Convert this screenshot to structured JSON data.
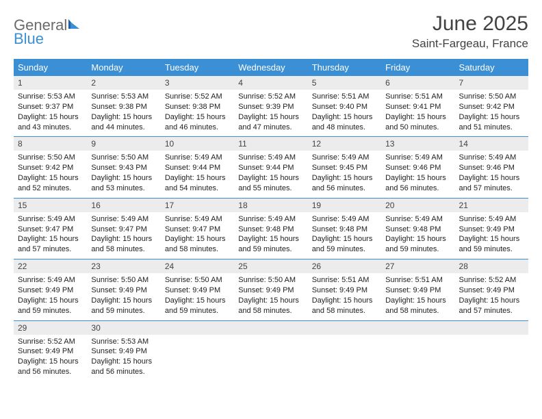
{
  "brand": {
    "part1": "General",
    "part2": "Blue"
  },
  "title": "June 2025",
  "location": "Saint-Fargeau, France",
  "colors": {
    "header_bg": "#3b8fd4",
    "header_text": "#ffffff",
    "daynum_bg": "#ececec",
    "border": "#3b8fd4",
    "text": "#212121",
    "title_text": "#424242",
    "logo_gray": "#6b6b6b",
    "logo_blue": "#3b8fd4",
    "page_bg": "#ffffff"
  },
  "fonts": {
    "title_size": 30,
    "location_size": 17,
    "th_size": 13,
    "daynum_size": 12,
    "body_size": 11
  },
  "weekdays": [
    "Sunday",
    "Monday",
    "Tuesday",
    "Wednesday",
    "Thursday",
    "Friday",
    "Saturday"
  ],
  "weeks": [
    [
      {
        "n": "1",
        "sr": "5:53 AM",
        "ss": "9:37 PM",
        "dl": "15 hours and 43 minutes."
      },
      {
        "n": "2",
        "sr": "5:53 AM",
        "ss": "9:38 PM",
        "dl": "15 hours and 44 minutes."
      },
      {
        "n": "3",
        "sr": "5:52 AM",
        "ss": "9:38 PM",
        "dl": "15 hours and 46 minutes."
      },
      {
        "n": "4",
        "sr": "5:52 AM",
        "ss": "9:39 PM",
        "dl": "15 hours and 47 minutes."
      },
      {
        "n": "5",
        "sr": "5:51 AM",
        "ss": "9:40 PM",
        "dl": "15 hours and 48 minutes."
      },
      {
        "n": "6",
        "sr": "5:51 AM",
        "ss": "9:41 PM",
        "dl": "15 hours and 50 minutes."
      },
      {
        "n": "7",
        "sr": "5:50 AM",
        "ss": "9:42 PM",
        "dl": "15 hours and 51 minutes."
      }
    ],
    [
      {
        "n": "8",
        "sr": "5:50 AM",
        "ss": "9:42 PM",
        "dl": "15 hours and 52 minutes."
      },
      {
        "n": "9",
        "sr": "5:50 AM",
        "ss": "9:43 PM",
        "dl": "15 hours and 53 minutes."
      },
      {
        "n": "10",
        "sr": "5:49 AM",
        "ss": "9:44 PM",
        "dl": "15 hours and 54 minutes."
      },
      {
        "n": "11",
        "sr": "5:49 AM",
        "ss": "9:44 PM",
        "dl": "15 hours and 55 minutes."
      },
      {
        "n": "12",
        "sr": "5:49 AM",
        "ss": "9:45 PM",
        "dl": "15 hours and 56 minutes."
      },
      {
        "n": "13",
        "sr": "5:49 AM",
        "ss": "9:46 PM",
        "dl": "15 hours and 56 minutes."
      },
      {
        "n": "14",
        "sr": "5:49 AM",
        "ss": "9:46 PM",
        "dl": "15 hours and 57 minutes."
      }
    ],
    [
      {
        "n": "15",
        "sr": "5:49 AM",
        "ss": "9:47 PM",
        "dl": "15 hours and 57 minutes."
      },
      {
        "n": "16",
        "sr": "5:49 AM",
        "ss": "9:47 PM",
        "dl": "15 hours and 58 minutes."
      },
      {
        "n": "17",
        "sr": "5:49 AM",
        "ss": "9:47 PM",
        "dl": "15 hours and 58 minutes."
      },
      {
        "n": "18",
        "sr": "5:49 AM",
        "ss": "9:48 PM",
        "dl": "15 hours and 59 minutes."
      },
      {
        "n": "19",
        "sr": "5:49 AM",
        "ss": "9:48 PM",
        "dl": "15 hours and 59 minutes."
      },
      {
        "n": "20",
        "sr": "5:49 AM",
        "ss": "9:48 PM",
        "dl": "15 hours and 59 minutes."
      },
      {
        "n": "21",
        "sr": "5:49 AM",
        "ss": "9:49 PM",
        "dl": "15 hours and 59 minutes."
      }
    ],
    [
      {
        "n": "22",
        "sr": "5:49 AM",
        "ss": "9:49 PM",
        "dl": "15 hours and 59 minutes."
      },
      {
        "n": "23",
        "sr": "5:50 AM",
        "ss": "9:49 PM",
        "dl": "15 hours and 59 minutes."
      },
      {
        "n": "24",
        "sr": "5:50 AM",
        "ss": "9:49 PM",
        "dl": "15 hours and 59 minutes."
      },
      {
        "n": "25",
        "sr": "5:50 AM",
        "ss": "9:49 PM",
        "dl": "15 hours and 58 minutes."
      },
      {
        "n": "26",
        "sr": "5:51 AM",
        "ss": "9:49 PM",
        "dl": "15 hours and 58 minutes."
      },
      {
        "n": "27",
        "sr": "5:51 AM",
        "ss": "9:49 PM",
        "dl": "15 hours and 58 minutes."
      },
      {
        "n": "28",
        "sr": "5:52 AM",
        "ss": "9:49 PM",
        "dl": "15 hours and 57 minutes."
      }
    ],
    [
      {
        "n": "29",
        "sr": "5:52 AM",
        "ss": "9:49 PM",
        "dl": "15 hours and 56 minutes."
      },
      {
        "n": "30",
        "sr": "5:53 AM",
        "ss": "9:49 PM",
        "dl": "15 hours and 56 minutes."
      },
      null,
      null,
      null,
      null,
      null
    ]
  ],
  "labels": {
    "sunrise": "Sunrise: ",
    "sunset": "Sunset: ",
    "daylight": "Daylight: "
  }
}
